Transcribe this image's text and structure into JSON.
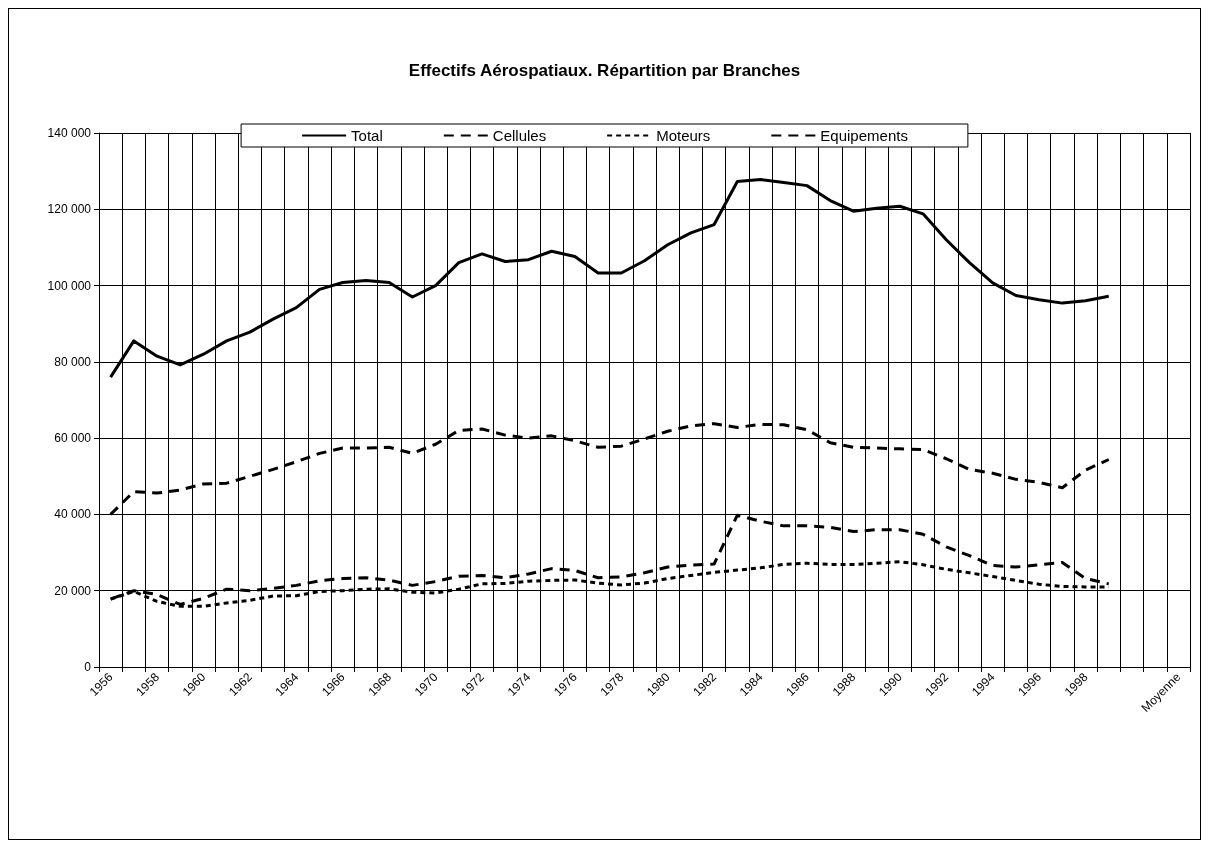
{
  "chart_data": {
    "type": "line",
    "title": "Effectifs Aérospatiaux. Répartition par Branches",
    "categories": [
      "1956",
      null,
      "1958",
      null,
      "1960",
      null,
      "1962",
      null,
      "1964",
      null,
      "1966",
      null,
      "1968",
      null,
      "1970",
      null,
      "1972",
      null,
      "1974",
      null,
      "1976",
      null,
      "1978",
      null,
      "1980",
      null,
      "1982",
      null,
      "1984",
      null,
      "1986",
      null,
      "1988",
      null,
      "1990",
      null,
      "1992",
      null,
      "1994",
      null,
      "1996",
      null,
      "1998",
      null,
      null,
      null,
      "Moyenne"
    ],
    "series": [
      {
        "name": "Total",
        "color": "#000000",
        "line_style": "solid",
        "values": [
          76000,
          85500,
          81500,
          79200,
          82000,
          85500,
          87800,
          91200,
          94200,
          99000,
          100800,
          101300,
          100800,
          97000,
          100000,
          106000,
          108300,
          106300,
          106800,
          109000,
          107600,
          103300,
          103300,
          106500,
          110700,
          113800,
          116000,
          127300,
          127800,
          127000,
          126200,
          122300,
          119500,
          120300,
          120800,
          118800,
          112000,
          106000,
          100700,
          97400,
          96300,
          95400,
          96000,
          97200,
          null,
          null,
          null
        ]
      },
      {
        "name": "Cellules",
        "color": "#000000",
        "line_style": "dashed",
        "values": [
          40000,
          46000,
          45600,
          46400,
          48000,
          48200,
          50000,
          51800,
          53800,
          56000,
          57400,
          57400,
          57600,
          56000,
          58400,
          62000,
          62400,
          60800,
          60000,
          60600,
          59300,
          57600,
          57900,
          59800,
          61800,
          63200,
          63800,
          62800,
          63600,
          63500,
          62200,
          58800,
          57600,
          57400,
          57200,
          57000,
          54600,
          51800,
          50800,
          49200,
          48400,
          47000,
          51600,
          54400,
          null,
          null,
          null
        ]
      },
      {
        "name": "Moteurs",
        "color": "#000000",
        "line_style": "dotted",
        "values": [
          17800,
          19800,
          17200,
          15900,
          15900,
          16800,
          17500,
          18600,
          18700,
          19800,
          20000,
          20400,
          20500,
          19600,
          19400,
          20400,
          21800,
          21900,
          22500,
          22700,
          22800,
          22000,
          21500,
          22000,
          23200,
          24000,
          24800,
          25400,
          26000,
          26900,
          27200,
          26900,
          26900,
          27200,
          27600,
          26800,
          25600,
          24700,
          23700,
          22700,
          21700,
          21100,
          21000,
          21000,
          null,
          null,
          null
        ]
      },
      {
        "name": "Equipements",
        "color": "#000000",
        "line_style": "dashed",
        "values": [
          17800,
          20000,
          19000,
          16400,
          18000,
          20400,
          20000,
          20600,
          21400,
          22600,
          23200,
          23400,
          22800,
          21400,
          22400,
          23800,
          24000,
          23400,
          24400,
          25800,
          25300,
          23400,
          23600,
          24700,
          26200,
          26700,
          27000,
          39800,
          38200,
          37000,
          37000,
          36600,
          35500,
          36000,
          36000,
          34800,
          31500,
          29200,
          26600,
          26200,
          26800,
          27400,
          23200,
          21800,
          null,
          null,
          null
        ]
      }
    ],
    "ylim": [
      0,
      140000
    ],
    "yticks": [
      {
        "value": 0,
        "label": "0"
      },
      {
        "value": 20000,
        "label": "20 000"
      },
      {
        "value": 40000,
        "label": "40 000"
      },
      {
        "value": 60000,
        "label": "60 000"
      },
      {
        "value": 80000,
        "label": "80 000"
      },
      {
        "value": 100000,
        "label": "100 000"
      },
      {
        "value": 120000,
        "label": "120 000"
      },
      {
        "value": 140000,
        "label": "140 000"
      }
    ],
    "grid": true,
    "legend": "top",
    "marker": "none"
  }
}
